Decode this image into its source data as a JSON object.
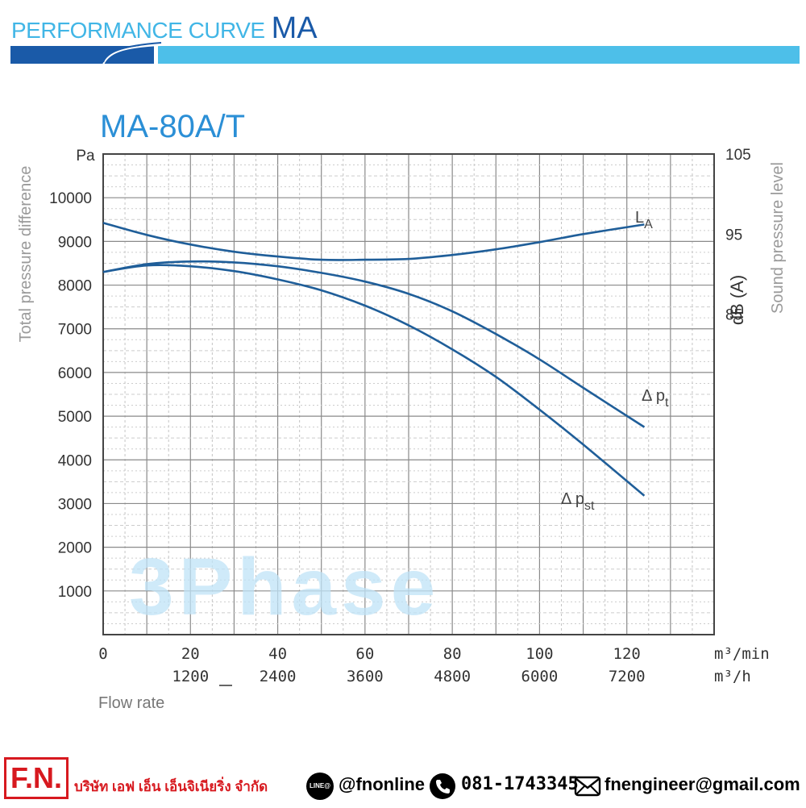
{
  "header": {
    "title_light": "PERFORMANCE CURVE",
    "title_bold": "MA",
    "accent_dark": "#1a5aa8",
    "accent_light": "#4dbfe9"
  },
  "chart_data": {
    "type": "line",
    "title": "MA-80A/T",
    "watermark": "3Phase",
    "xlabel": "Flow rate",
    "x_unit_primary": "m³/min",
    "x_unit_secondary": "m³/h",
    "x_ticks_primary": [
      "0",
      "20",
      "40",
      "60",
      "80",
      "100",
      "120"
    ],
    "x_ticks_primary_values": [
      0,
      20,
      40,
      60,
      80,
      100,
      120
    ],
    "x_ticks_secondary": [
      "1200",
      "2400",
      "3600",
      "4800",
      "6000",
      "7200"
    ],
    "x_ticks_secondary_values": [
      20,
      40,
      60,
      80,
      100,
      120
    ],
    "xlim": [
      0,
      140
    ],
    "ylabel_left": "Total pressure difference",
    "ylabel_left_unit": "Pa",
    "y_ticks_left": [
      "10000",
      "9000",
      "8000",
      "7000",
      "6000",
      "5000",
      "4000",
      "3000",
      "2000",
      "1000"
    ],
    "y_ticks_left_values": [
      10000,
      9000,
      8000,
      7000,
      6000,
      5000,
      4000,
      3000,
      2000,
      1000
    ],
    "ylim_left": [
      0,
      11000
    ],
    "ylabel_right": "Sound pressure level",
    "ylabel_right_unit": "dB (A)",
    "y_ticks_right": [
      "105",
      "95",
      "85"
    ],
    "y_ticks_right_values": [
      105,
      95,
      85
    ],
    "ylim_right": [
      45,
      105
    ],
    "grid": true,
    "line_color": "#1f5e99",
    "series": [
      {
        "name": "LA",
        "label_sub": "A",
        "label_main": "L",
        "axis": "right",
        "x": [
          0,
          10,
          20,
          30,
          40,
          50,
          60,
          70,
          80,
          90,
          100,
          110,
          124
        ],
        "values": [
          96.4,
          94.9,
          93.7,
          92.8,
          92.2,
          91.8,
          91.8,
          91.9,
          92.4,
          93.1,
          94.0,
          95.0,
          96.2
        ]
      },
      {
        "name": "Δpt",
        "label_main": "Δ p",
        "label_sub": "t",
        "axis": "left",
        "x": [
          0,
          10,
          20,
          30,
          40,
          50,
          60,
          70,
          80,
          90,
          100,
          110,
          124
        ],
        "values": [
          8300,
          8480,
          8540,
          8520,
          8430,
          8280,
          8080,
          7800,
          7400,
          6880,
          6300,
          5650,
          4750
        ]
      },
      {
        "name": "Δpst",
        "label_main": "Δ p",
        "label_sub": "st",
        "axis": "left",
        "x": [
          0,
          10,
          20,
          30,
          40,
          50,
          60,
          70,
          80,
          90,
          100,
          110,
          124
        ],
        "values": [
          8300,
          8450,
          8430,
          8320,
          8130,
          7880,
          7530,
          7080,
          6530,
          5900,
          5150,
          4350,
          3180
        ]
      }
    ]
  },
  "footer": {
    "logo": "F.N.",
    "company": "บริษัท เอฟ เอ็น เอ็นจิเนียริ่ง จำกัด",
    "line_icon_text": "LINE@",
    "line_id": "@fnonline",
    "phone": "081-1743345",
    "email": "fnengineer@gmail.com",
    "logo_color": "#d7191f"
  }
}
